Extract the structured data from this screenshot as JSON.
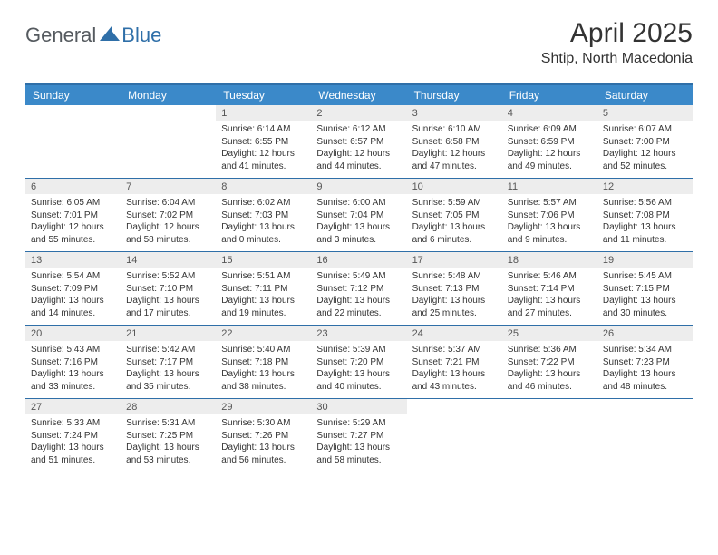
{
  "logo": {
    "general": "General",
    "blue": "Blue"
  },
  "title": "April 2025",
  "location": "Shtip, North Macedonia",
  "colors": {
    "header_bg": "#3b89c9",
    "header_text": "#ffffff",
    "border": "#2f6fa8",
    "datebar_bg": "#ededed",
    "datebar_text": "#555555",
    "body_text": "#333333",
    "logo_gray": "#555a5f",
    "logo_blue": "#2f6fa8"
  },
  "day_names": [
    "Sunday",
    "Monday",
    "Tuesday",
    "Wednesday",
    "Thursday",
    "Friday",
    "Saturday"
  ],
  "weeks": [
    [
      null,
      null,
      {
        "d": "1",
        "sr": "Sunrise: 6:14 AM",
        "ss": "Sunset: 6:55 PM",
        "dl": "Daylight: 12 hours and 41 minutes."
      },
      {
        "d": "2",
        "sr": "Sunrise: 6:12 AM",
        "ss": "Sunset: 6:57 PM",
        "dl": "Daylight: 12 hours and 44 minutes."
      },
      {
        "d": "3",
        "sr": "Sunrise: 6:10 AM",
        "ss": "Sunset: 6:58 PM",
        "dl": "Daylight: 12 hours and 47 minutes."
      },
      {
        "d": "4",
        "sr": "Sunrise: 6:09 AM",
        "ss": "Sunset: 6:59 PM",
        "dl": "Daylight: 12 hours and 49 minutes."
      },
      {
        "d": "5",
        "sr": "Sunrise: 6:07 AM",
        "ss": "Sunset: 7:00 PM",
        "dl": "Daylight: 12 hours and 52 minutes."
      }
    ],
    [
      {
        "d": "6",
        "sr": "Sunrise: 6:05 AM",
        "ss": "Sunset: 7:01 PM",
        "dl": "Daylight: 12 hours and 55 minutes."
      },
      {
        "d": "7",
        "sr": "Sunrise: 6:04 AM",
        "ss": "Sunset: 7:02 PM",
        "dl": "Daylight: 12 hours and 58 minutes."
      },
      {
        "d": "8",
        "sr": "Sunrise: 6:02 AM",
        "ss": "Sunset: 7:03 PM",
        "dl": "Daylight: 13 hours and 0 minutes."
      },
      {
        "d": "9",
        "sr": "Sunrise: 6:00 AM",
        "ss": "Sunset: 7:04 PM",
        "dl": "Daylight: 13 hours and 3 minutes."
      },
      {
        "d": "10",
        "sr": "Sunrise: 5:59 AM",
        "ss": "Sunset: 7:05 PM",
        "dl": "Daylight: 13 hours and 6 minutes."
      },
      {
        "d": "11",
        "sr": "Sunrise: 5:57 AM",
        "ss": "Sunset: 7:06 PM",
        "dl": "Daylight: 13 hours and 9 minutes."
      },
      {
        "d": "12",
        "sr": "Sunrise: 5:56 AM",
        "ss": "Sunset: 7:08 PM",
        "dl": "Daylight: 13 hours and 11 minutes."
      }
    ],
    [
      {
        "d": "13",
        "sr": "Sunrise: 5:54 AM",
        "ss": "Sunset: 7:09 PM",
        "dl": "Daylight: 13 hours and 14 minutes."
      },
      {
        "d": "14",
        "sr": "Sunrise: 5:52 AM",
        "ss": "Sunset: 7:10 PM",
        "dl": "Daylight: 13 hours and 17 minutes."
      },
      {
        "d": "15",
        "sr": "Sunrise: 5:51 AM",
        "ss": "Sunset: 7:11 PM",
        "dl": "Daylight: 13 hours and 19 minutes."
      },
      {
        "d": "16",
        "sr": "Sunrise: 5:49 AM",
        "ss": "Sunset: 7:12 PM",
        "dl": "Daylight: 13 hours and 22 minutes."
      },
      {
        "d": "17",
        "sr": "Sunrise: 5:48 AM",
        "ss": "Sunset: 7:13 PM",
        "dl": "Daylight: 13 hours and 25 minutes."
      },
      {
        "d": "18",
        "sr": "Sunrise: 5:46 AM",
        "ss": "Sunset: 7:14 PM",
        "dl": "Daylight: 13 hours and 27 minutes."
      },
      {
        "d": "19",
        "sr": "Sunrise: 5:45 AM",
        "ss": "Sunset: 7:15 PM",
        "dl": "Daylight: 13 hours and 30 minutes."
      }
    ],
    [
      {
        "d": "20",
        "sr": "Sunrise: 5:43 AM",
        "ss": "Sunset: 7:16 PM",
        "dl": "Daylight: 13 hours and 33 minutes."
      },
      {
        "d": "21",
        "sr": "Sunrise: 5:42 AM",
        "ss": "Sunset: 7:17 PM",
        "dl": "Daylight: 13 hours and 35 minutes."
      },
      {
        "d": "22",
        "sr": "Sunrise: 5:40 AM",
        "ss": "Sunset: 7:18 PM",
        "dl": "Daylight: 13 hours and 38 minutes."
      },
      {
        "d": "23",
        "sr": "Sunrise: 5:39 AM",
        "ss": "Sunset: 7:20 PM",
        "dl": "Daylight: 13 hours and 40 minutes."
      },
      {
        "d": "24",
        "sr": "Sunrise: 5:37 AM",
        "ss": "Sunset: 7:21 PM",
        "dl": "Daylight: 13 hours and 43 minutes."
      },
      {
        "d": "25",
        "sr": "Sunrise: 5:36 AM",
        "ss": "Sunset: 7:22 PM",
        "dl": "Daylight: 13 hours and 46 minutes."
      },
      {
        "d": "26",
        "sr": "Sunrise: 5:34 AM",
        "ss": "Sunset: 7:23 PM",
        "dl": "Daylight: 13 hours and 48 minutes."
      }
    ],
    [
      {
        "d": "27",
        "sr": "Sunrise: 5:33 AM",
        "ss": "Sunset: 7:24 PM",
        "dl": "Daylight: 13 hours and 51 minutes."
      },
      {
        "d": "28",
        "sr": "Sunrise: 5:31 AM",
        "ss": "Sunset: 7:25 PM",
        "dl": "Daylight: 13 hours and 53 minutes."
      },
      {
        "d": "29",
        "sr": "Sunrise: 5:30 AM",
        "ss": "Sunset: 7:26 PM",
        "dl": "Daylight: 13 hours and 56 minutes."
      },
      {
        "d": "30",
        "sr": "Sunrise: 5:29 AM",
        "ss": "Sunset: 7:27 PM",
        "dl": "Daylight: 13 hours and 58 minutes."
      },
      null,
      null,
      null
    ]
  ]
}
